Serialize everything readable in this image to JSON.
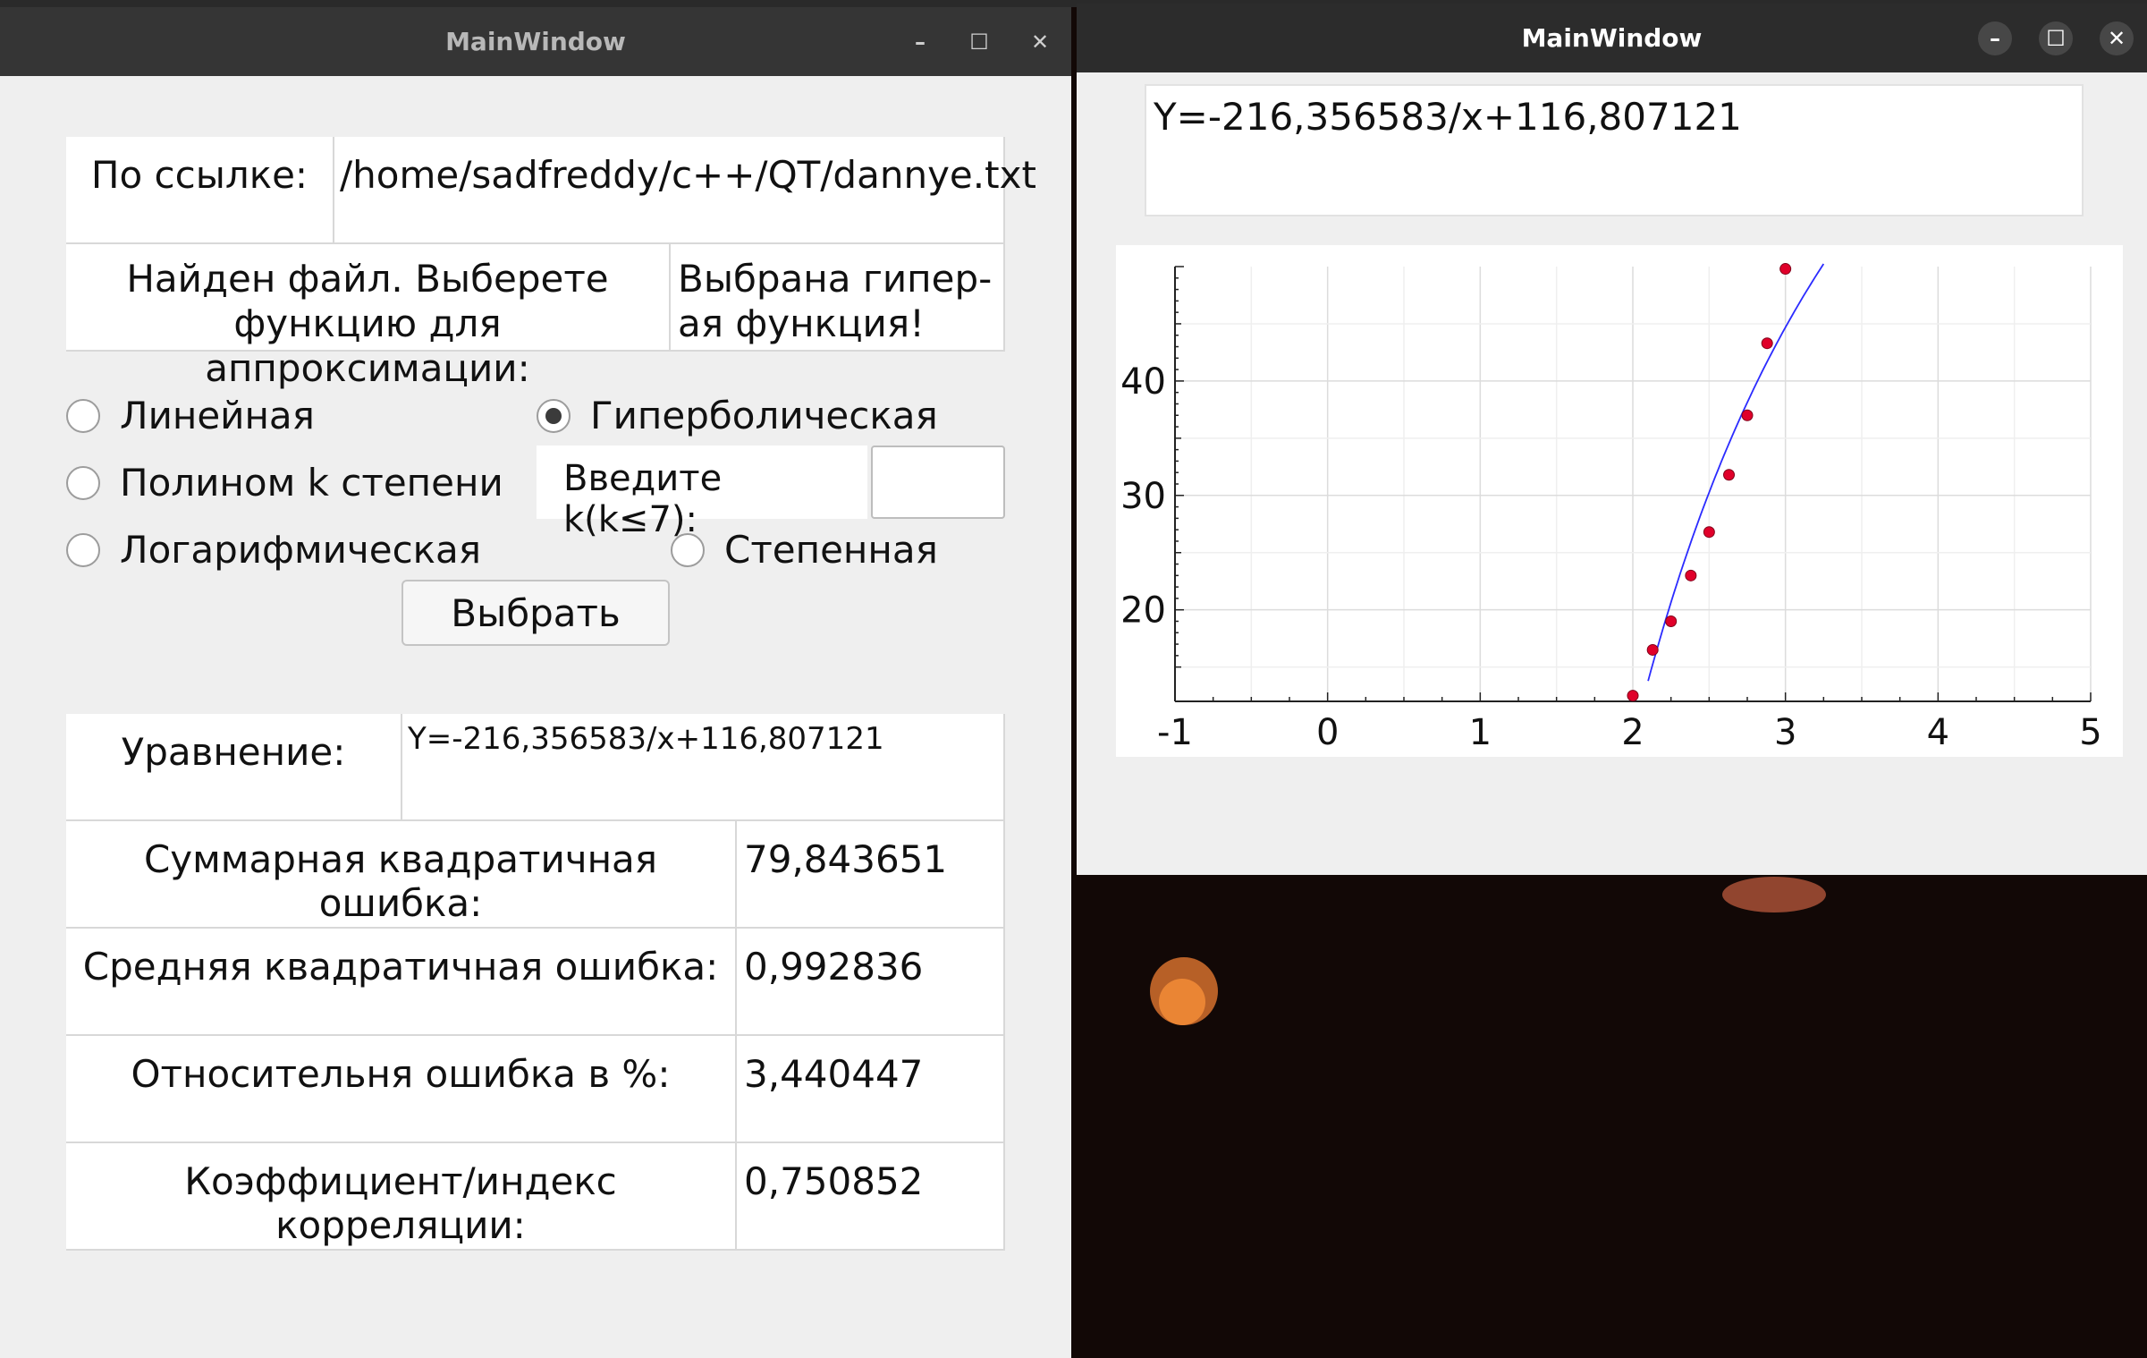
{
  "left_window": {
    "title": "MainWindow",
    "controls": {
      "minimize": "–",
      "maximize": "☐",
      "close": "✕"
    },
    "path_label": "По ссылке:",
    "path_value": "/home/sadfreddy/c++/QT/dannye.txt",
    "found_label": "Найден файл. Выберете функцию для аппроксимации:",
    "selected_label": "Выбрана гипер-ая функция!",
    "radios": [
      {
        "label": "Линейная",
        "checked": false
      },
      {
        "label": "Гиперболическая",
        "checked": true
      },
      {
        "label": "Полином k степени",
        "checked": false
      },
      {
        "label": "Логарифмическая",
        "checked": false
      },
      {
        "label": "Степенная",
        "checked": false
      }
    ],
    "k_label": "Введите k(k≤7):",
    "k_value": "",
    "select_button": "Выбрать",
    "results": [
      {
        "label": "Уравнение:",
        "value": "Y=-216,356583/x+116,807121"
      },
      {
        "label": "Суммарная квадратичная ошибка:",
        "value": "79,843651"
      },
      {
        "label": "Средняя квадратичная ошибка:",
        "value": "0,992836"
      },
      {
        "label": "Относительня ошибка в %:",
        "value": "3,440447"
      },
      {
        "label": "Коэффициент/индекс корреляции:",
        "value": "0,750852"
      }
    ]
  },
  "right_window": {
    "title": "MainWindow",
    "controls": {
      "minimize": "–",
      "maximize": "☐",
      "close": "✕"
    },
    "equation": "Y=-216,356583/x+116,807121"
  },
  "chart_data": {
    "type": "scatter",
    "title": "",
    "xlabel": "",
    "ylabel": "",
    "xlim": [
      -1,
      5
    ],
    "ylim": [
      12,
      50
    ],
    "x_ticks": [
      "-1",
      "0",
      "1",
      "2",
      "3",
      "4",
      "5"
    ],
    "y_ticks": [
      "20",
      "30",
      "40"
    ],
    "grid": true,
    "series": [
      {
        "type": "scatter",
        "color": "#e0002a",
        "points": [
          [
            2.0,
            12.5
          ],
          [
            2.13,
            16.5
          ],
          [
            2.25,
            19.0
          ],
          [
            2.38,
            23.0
          ],
          [
            2.5,
            26.8
          ],
          [
            2.63,
            31.8
          ],
          [
            2.75,
            37.0
          ],
          [
            2.88,
            43.3
          ],
          [
            3.0,
            49.8
          ]
        ]
      },
      {
        "type": "line",
        "color": "#2b2bff",
        "function": "Y=-216,356583/x+116,807121",
        "a": -216.356583,
        "b": 116.807121,
        "x_range": [
          2.1,
          3.25
        ]
      }
    ]
  },
  "colors": {
    "window_bg": "#efefef",
    "titlebar_active": "#2c2c2c",
    "titlebar_inactive": "#353535",
    "desktop": "#120806",
    "accent_red": "#e0002a",
    "accent_blue": "#2b2bff"
  }
}
